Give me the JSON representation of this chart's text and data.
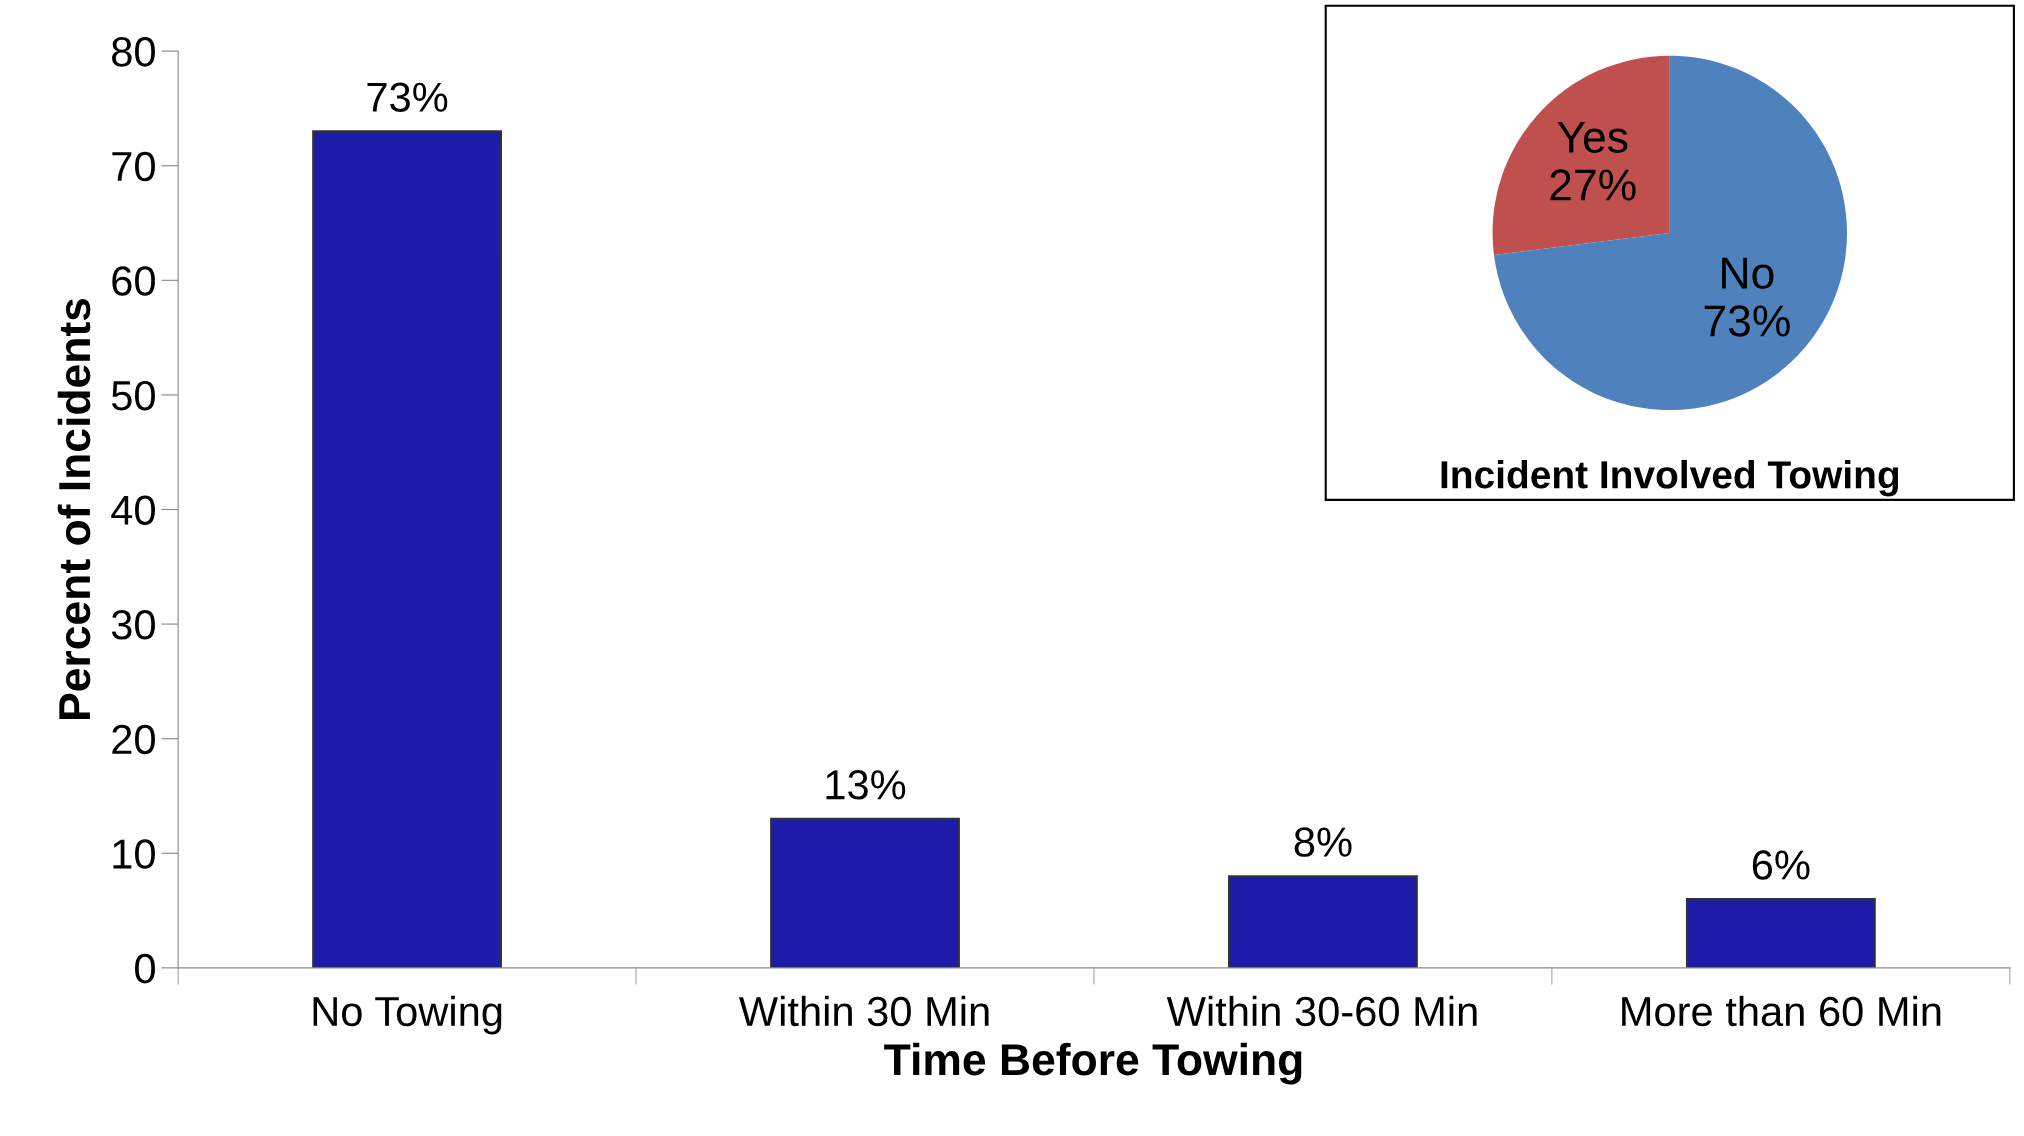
{
  "chart_data": [
    {
      "type": "bar",
      "xlabel": "Time Before Towing",
      "ylabel": "Percent of Incidents",
      "categories": [
        "No Towing",
        "Within 30 Min",
        "Within 30-60 Min",
        "More than 60 Min"
      ],
      "values": [
        73,
        13,
        8,
        6
      ],
      "value_labels": [
        "73%",
        "13%",
        "8%",
        "6%"
      ],
      "color": "#1c1ca8",
      "ylim": [
        0,
        80
      ],
      "yticks": [
        0,
        10,
        20,
        30,
        40,
        50,
        60,
        70,
        80
      ],
      "grid": false,
      "legend": false
    },
    {
      "type": "pie",
      "xlabel": "Incident Involved Towing",
      "categories": [
        "Yes",
        "No"
      ],
      "values": [
        27,
        73
      ],
      "value_labels": [
        "27%",
        "73%"
      ],
      "colors": [
        "#c0504d",
        "#4f81bd"
      ]
    }
  ]
}
